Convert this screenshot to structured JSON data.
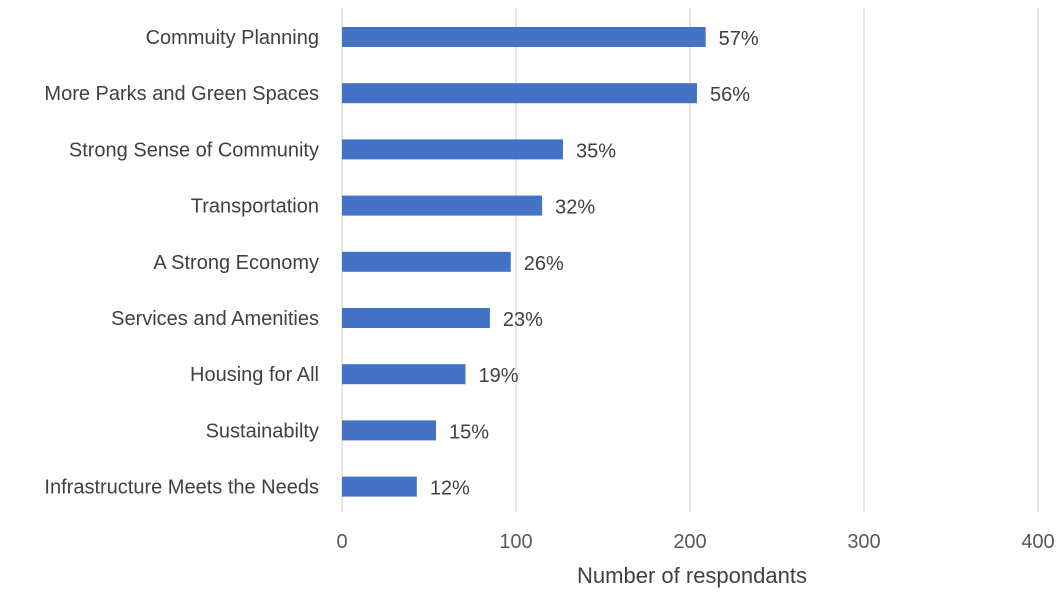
{
  "chart_data": {
    "type": "bar",
    "orientation": "horizontal",
    "categories": [
      "Commuity Planning",
      "More Parks and Green Spaces",
      "Strong Sense of Community",
      "Transportation",
      "A Strong Economy",
      "Services and Amenities",
      "Housing for All",
      "Sustainabilty",
      "Infrastructure Meets the Needs"
    ],
    "values": [
      209,
      204,
      127,
      115,
      97,
      85,
      71,
      54,
      43
    ],
    "data_labels": [
      "57%",
      "56%",
      "35%",
      "32%",
      "26%",
      "23%",
      "19%",
      "15%",
      "12%"
    ],
    "title": "",
    "xlabel": "Number of respondants",
    "ylabel": "",
    "xlim": [
      0,
      400
    ],
    "xticks": [
      0,
      100,
      200,
      300,
      400
    ],
    "grid": "vertical",
    "legend": "none",
    "bar_color": "#4472c4"
  }
}
